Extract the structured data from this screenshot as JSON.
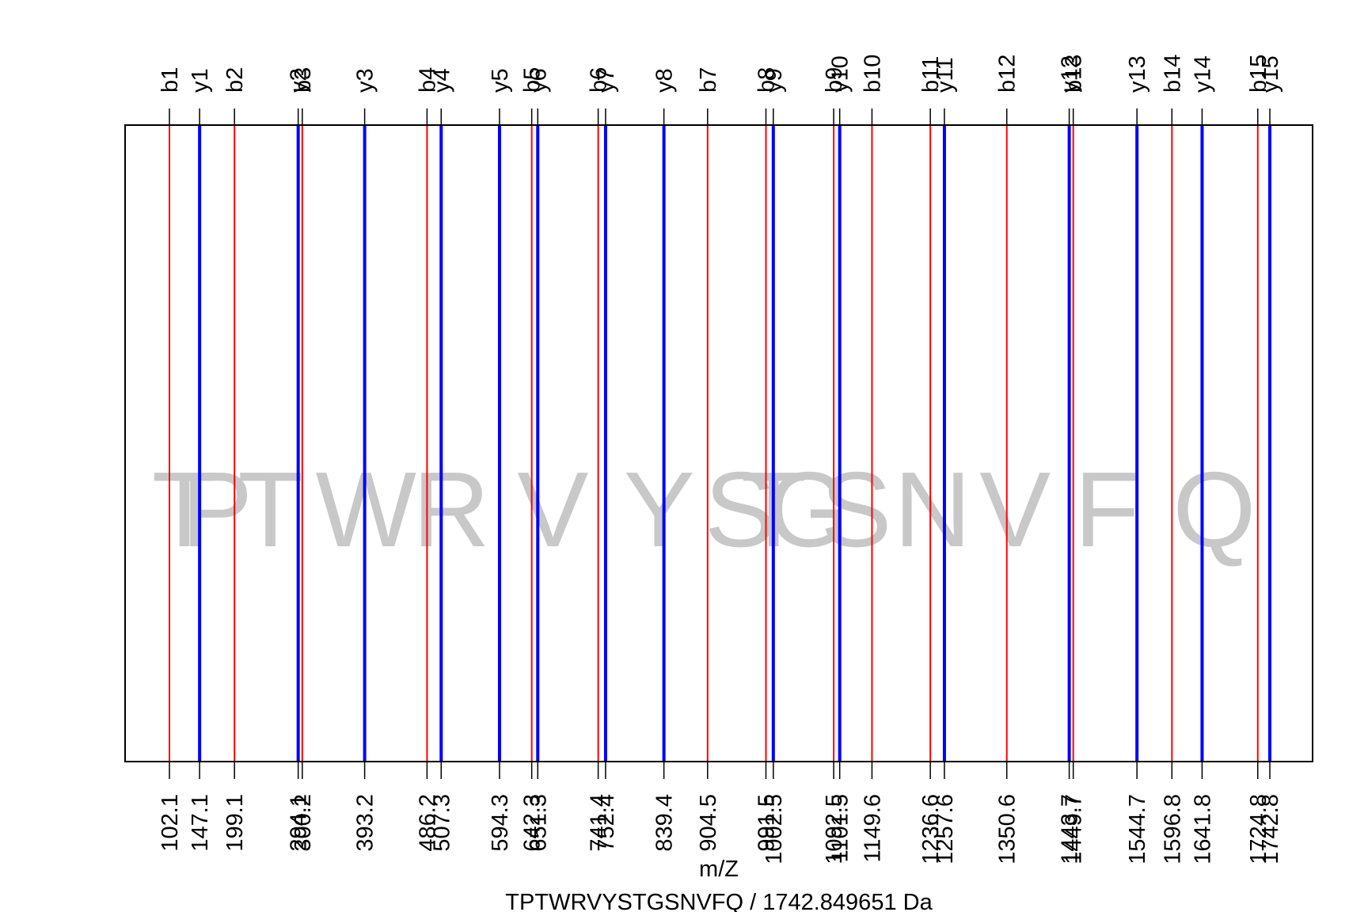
{
  "chart_data": {
    "type": "fragment-ion-spectrum",
    "xlabel": "m/Z",
    "subtitle": "TPTWRVYSTGSNVFQ / 1742.849651 Da",
    "xlim": [
      102.1,
      1742.8
    ],
    "sequence_letters": [
      {
        "letter": "T",
        "x": 124.6
      },
      {
        "letter": "P",
        "x": 173.1
      },
      {
        "letter": "T",
        "x": 252.7
      },
      {
        "letter": "W",
        "x": 395.2
      },
      {
        "letter": "R",
        "x": 522.3
      },
      {
        "letter": "V",
        "x": 673.9
      },
      {
        "letter": "Y",
        "x": 832.5
      },
      {
        "letter": "S",
        "x": 952.9
      },
      {
        "letter": "T",
        "x": 1003.0
      },
      {
        "letter": "G",
        "x": 1054.6
      },
      {
        "letter": "S",
        "x": 1126.0
      },
      {
        "letter": "N",
        "x": 1240.0
      },
      {
        "letter": "V",
        "x": 1363.0
      },
      {
        "letter": "F",
        "x": 1500.0
      },
      {
        "letter": "Q",
        "x": 1660.0
      }
    ],
    "series": [
      {
        "name": "b",
        "color": "#ff0000",
        "ions": [
          {
            "label": "b1",
            "mz": 102.1,
            "mz_label": "102.1"
          },
          {
            "label": "b2",
            "mz": 199.1,
            "mz_label": "199.1"
          },
          {
            "label": "b3",
            "mz": 300.2,
            "mz_label": "300.2"
          },
          {
            "label": "b4",
            "mz": 486.2,
            "mz_label": "486.2"
          },
          {
            "label": "b5",
            "mz": 642.3,
            "mz_label": "642.3"
          },
          {
            "label": "b6",
            "mz": 741.4,
            "mz_label": "741.4"
          },
          {
            "label": "b7",
            "mz": 904.5,
            "mz_label": "904.5"
          },
          {
            "label": "b8",
            "mz": 991.5,
            "mz_label": "991.5"
          },
          {
            "label": "b9",
            "mz": 1092.5,
            "mz_label": "1092.5"
          },
          {
            "label": "b10",
            "mz": 1149.6,
            "mz_label": "1149.6"
          },
          {
            "label": "b11",
            "mz": 1236.6,
            "mz_label": "1236.6"
          },
          {
            "label": "b12",
            "mz": 1350.6,
            "mz_label": "1350.6"
          },
          {
            "label": "b13",
            "mz": 1449.7,
            "mz_label": "1449.7"
          },
          {
            "label": "b14",
            "mz": 1596.8,
            "mz_label": "1596.8"
          },
          {
            "label": "b15",
            "mz": 1724.8,
            "mz_label": "1724.8"
          }
        ]
      },
      {
        "name": "y",
        "color": "#0000ff",
        "ions": [
          {
            "label": "y1",
            "mz": 147.1,
            "mz_label": "147.1"
          },
          {
            "label": "y2",
            "mz": 294.1,
            "mz_label": "294.1"
          },
          {
            "label": "y3",
            "mz": 393.2,
            "mz_label": "393.2"
          },
          {
            "label": "y4",
            "mz": 507.3,
            "mz_label": "507.3"
          },
          {
            "label": "y5",
            "mz": 594.3,
            "mz_label": "594.3"
          },
          {
            "label": "y6",
            "mz": 651.3,
            "mz_label": "651.3"
          },
          {
            "label": "y7",
            "mz": 752.4,
            "mz_label": "752.4"
          },
          {
            "label": "y8",
            "mz": 839.4,
            "mz_label": "839.4"
          },
          {
            "label": "y9",
            "mz": 1002.5,
            "mz_label": "1002.5"
          },
          {
            "label": "y10",
            "mz": 1101.5,
            "mz_label": "1101.5"
          },
          {
            "label": "y11",
            "mz": 1257.6,
            "mz_label": "1257.6"
          },
          {
            "label": "y12",
            "mz": 1443.7,
            "mz_label": "1443.7"
          },
          {
            "label": "y13",
            "mz": 1544.7,
            "mz_label": "1544.7"
          },
          {
            "label": "y14",
            "mz": 1641.8,
            "mz_label": "1641.8"
          },
          {
            "label": "y15",
            "mz": 1742.8,
            "mz_label": "1742.8"
          }
        ]
      }
    ]
  }
}
